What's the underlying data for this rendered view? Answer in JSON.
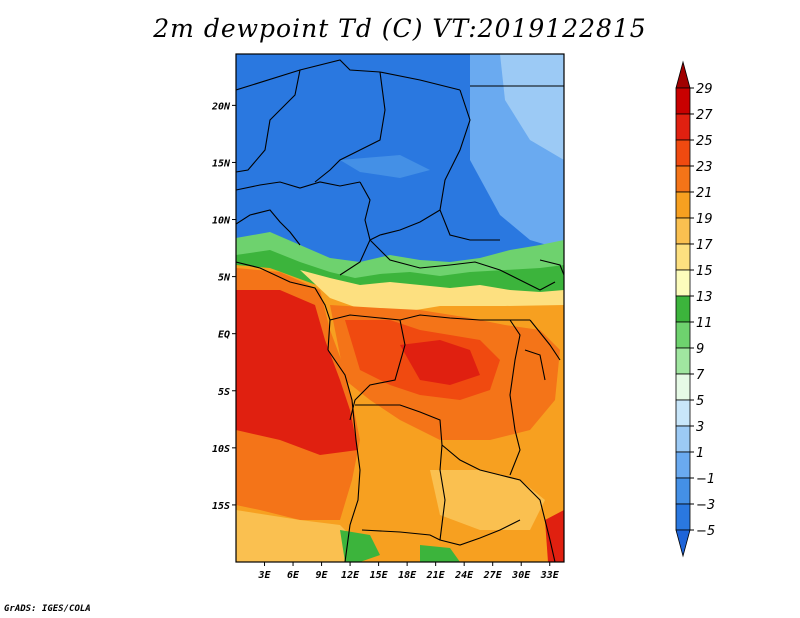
{
  "title": "2m dewpoint Td (C) VT:2019122815",
  "credit": "GrADS: IGES/COLA",
  "map": {
    "lon_range": [
      0,
      34.5
    ],
    "lat_range": [
      -20,
      24.5
    ],
    "lat_ticks": [
      {
        "label": "20N",
        "lat": 20
      },
      {
        "label": "15N",
        "lat": 15
      },
      {
        "label": "10N",
        "lat": 10
      },
      {
        "label": "5N",
        "lat": 5
      },
      {
        "label": "EQ",
        "lat": 0
      },
      {
        "label": "5S",
        "lat": -5
      },
      {
        "label": "10S",
        "lat": -10
      },
      {
        "label": "15S",
        "lat": -15
      }
    ],
    "lon_ticks": [
      {
        "label": "3E",
        "lon": 3
      },
      {
        "label": "6E",
        "lon": 6
      },
      {
        "label": "9E",
        "lon": 9
      },
      {
        "label": "12E",
        "lon": 12
      },
      {
        "label": "15E",
        "lon": 15
      },
      {
        "label": "18E",
        "lon": 18
      },
      {
        "label": "21E",
        "lon": 21
      },
      {
        "label": "24E",
        "lon": 24
      },
      {
        "label": "27E",
        "lon": 27
      },
      {
        "label": "30E",
        "lon": 30
      },
      {
        "label": "33E",
        "lon": 33
      }
    ]
  },
  "colorbar": {
    "levels": [
      "29",
      "27",
      "25",
      "23",
      "21",
      "19",
      "17",
      "15",
      "13",
      "11",
      "9",
      "7",
      "5",
      "3",
      "1",
      "−1",
      "−3",
      "−5"
    ],
    "colors": [
      "#a00000",
      "#c80000",
      "#e02010",
      "#f04a10",
      "#f47418",
      "#f7a020",
      "#fac050",
      "#fde080",
      "#fcfcbc",
      "#3cb43c",
      "#6ed26e",
      "#a0e6a0",
      "#e6fae6",
      "#c8e6fa",
      "#9ccaf5",
      "#6aaaf0",
      "#4490e6",
      "#2a78e0",
      "#1e64d8"
    ]
  }
}
